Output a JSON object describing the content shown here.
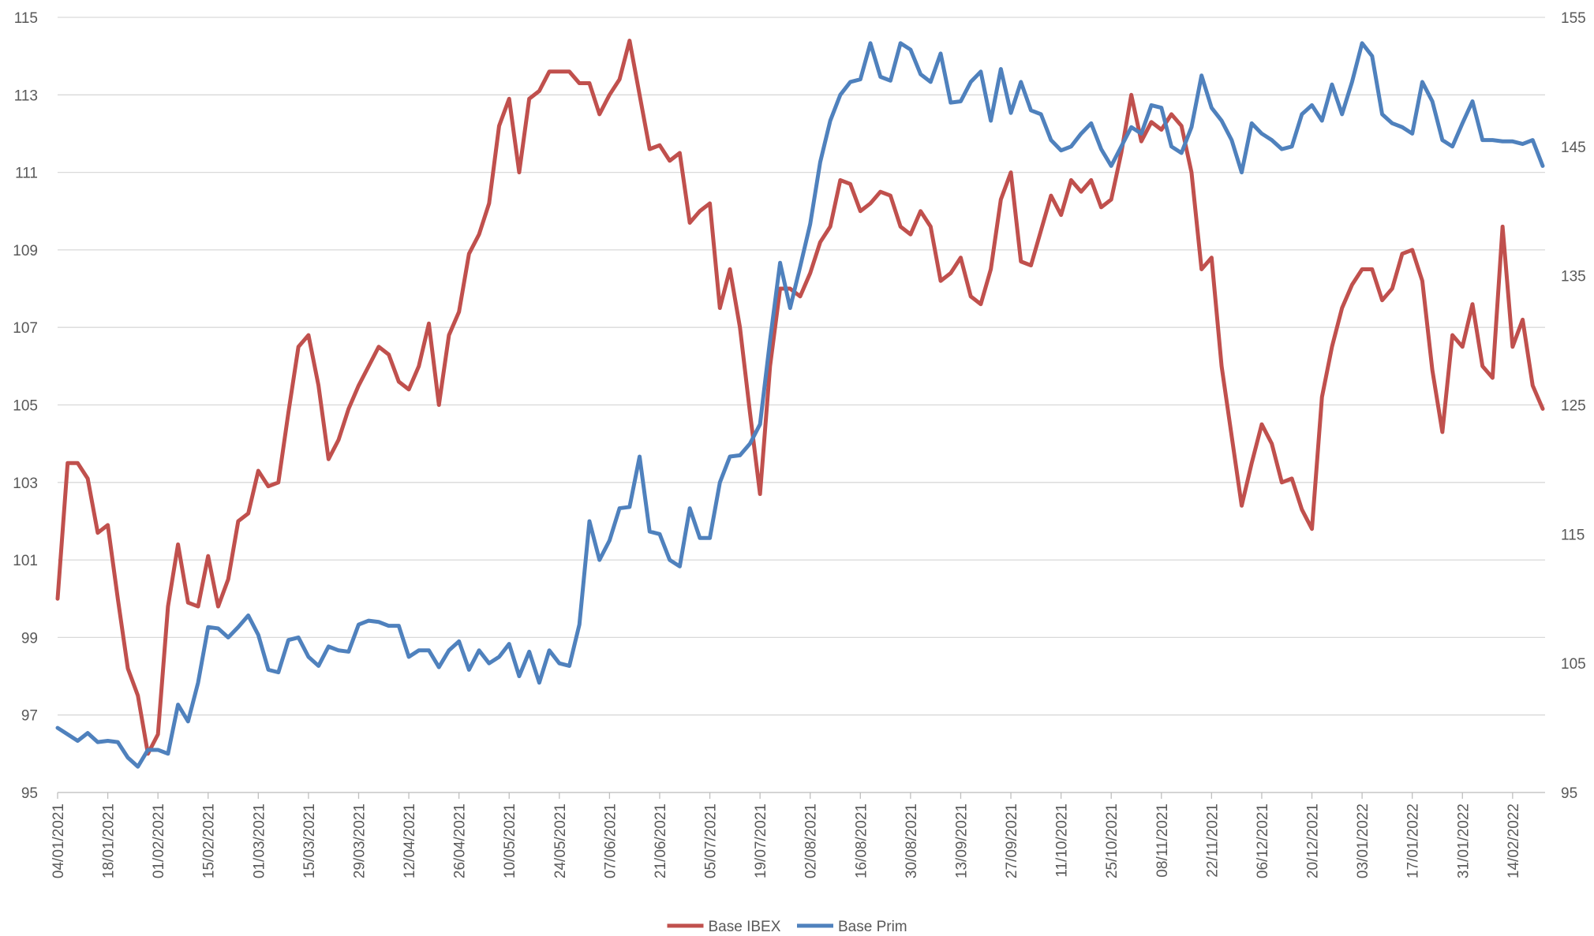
{
  "chart_data": {
    "type": "line",
    "categories": [
      "04/01/2021",
      null,
      null,
      null,
      null,
      "18/01/2021",
      null,
      null,
      null,
      null,
      "01/02/2021",
      null,
      null,
      null,
      null,
      "15/02/2021",
      null,
      null,
      null,
      null,
      "01/03/2021",
      null,
      null,
      null,
      null,
      "15/03/2021",
      null,
      null,
      null,
      null,
      "29/03/2021",
      null,
      null,
      null,
      null,
      "12/04/2021",
      null,
      null,
      null,
      null,
      "26/04/2021",
      null,
      null,
      null,
      null,
      "10/05/2021",
      null,
      null,
      null,
      null,
      "24/05/2021",
      null,
      null,
      null,
      null,
      "07/06/2021",
      null,
      null,
      null,
      null,
      "21/06/2021",
      null,
      null,
      null,
      null,
      "05/07/2021",
      null,
      null,
      null,
      null,
      "19/07/2021",
      null,
      null,
      null,
      null,
      "02/08/2021",
      null,
      null,
      null,
      null,
      "16/08/2021",
      null,
      null,
      null,
      null,
      "30/08/2021",
      null,
      null,
      null,
      null,
      "13/09/2021",
      null,
      null,
      null,
      null,
      "27/09/2021",
      null,
      null,
      null,
      null,
      "11/10/2021",
      null,
      null,
      null,
      null,
      "25/10/2021",
      null,
      null,
      null,
      null,
      "08/11/2021",
      null,
      null,
      null,
      null,
      "22/11/2021",
      null,
      null,
      null,
      null,
      "06/12/2021",
      null,
      null,
      null,
      null,
      "20/12/2021",
      null,
      null,
      null,
      null,
      "03/01/2022",
      null,
      null,
      null,
      null,
      "17/01/2022",
      null,
      null,
      null,
      null,
      "31/01/2022",
      null,
      null,
      null,
      null,
      "14/02/2022",
      null,
      null,
      null
    ],
    "series": [
      {
        "name": "Base IBEX",
        "color": "#c0504d",
        "axis": "y",
        "values": [
          100,
          103.5,
          103.5,
          103.1,
          101.7,
          101.9,
          100.0,
          98.2,
          97.5,
          96.0,
          96.5,
          99.8,
          101.4,
          99.9,
          99.8,
          101.1,
          99.8,
          100.5,
          102.0,
          102.2,
          103.3,
          102.9,
          103.0,
          104.8,
          106.5,
          106.8,
          105.5,
          103.6,
          104.1,
          104.9,
          105.5,
          106.0,
          106.5,
          106.3,
          105.6,
          105.4,
          106.0,
          107.1,
          105.0,
          106.8,
          107.4,
          108.9,
          109.4,
          110.2,
          112.2,
          112.9,
          111.0,
          112.9,
          113.1,
          113.6,
          113.6,
          113.6,
          113.3,
          113.3,
          112.5,
          113.0,
          113.4,
          114.4,
          113.0,
          111.6,
          111.7,
          111.3,
          111.5,
          109.7,
          110.0,
          110.2,
          107.5,
          108.5,
          107.0,
          104.8,
          102.7,
          106.0,
          108.0,
          108.0,
          107.8,
          108.4,
          109.2,
          109.6,
          110.8,
          110.7,
          110.0,
          110.2,
          110.5,
          110.4,
          109.6,
          109.4,
          110.0,
          109.6,
          108.2,
          108.4,
          108.8,
          107.8,
          107.6,
          108.5,
          110.3,
          111.0,
          108.7,
          108.6,
          109.5,
          110.4,
          109.9,
          110.8,
          110.5,
          110.8,
          110.1,
          110.3,
          111.5,
          113.0,
          111.8,
          112.3,
          112.1,
          112.5,
          112.2,
          111.0,
          108.5,
          108.8,
          106.0,
          104.2,
          102.4,
          103.5,
          104.5,
          104.0,
          103.0,
          103.1,
          102.3,
          101.8,
          105.2,
          106.5,
          107.5,
          108.1,
          108.5,
          108.5,
          107.7,
          108.0,
          108.9,
          109.0,
          108.2,
          105.9,
          104.3,
          106.8,
          106.5,
          107.6,
          106.0,
          105.7,
          109.6,
          106.5,
          107.2,
          105.5,
          104.9
        ]
      },
      {
        "name": "Base Prim",
        "color": "#4f81bd",
        "axis": "y2",
        "values": [
          100.0,
          99.5,
          99.0,
          99.6,
          98.9,
          99.0,
          98.9,
          97.7,
          97.0,
          98.3,
          98.3,
          98.0,
          101.8,
          100.5,
          103.5,
          107.8,
          107.7,
          107.0,
          107.8,
          108.7,
          107.2,
          104.5,
          104.3,
          106.8,
          107.0,
          105.5,
          104.8,
          106.3,
          106.0,
          105.9,
          108.0,
          108.3,
          108.2,
          107.9,
          107.9,
          105.5,
          106.0,
          106.0,
          104.7,
          106.0,
          106.7,
          104.5,
          106.0,
          105.0,
          105.5,
          106.5,
          104.0,
          105.9,
          103.5,
          106.0,
          105.0,
          104.8,
          108.0,
          116.0,
          113.0,
          114.5,
          117.0,
          117.1,
          121.0,
          115.2,
          115.0,
          113.0,
          112.5,
          117.0,
          114.7,
          114.7,
          119.0,
          121.0,
          121.1,
          122.0,
          123.5,
          130.0,
          136.0,
          132.5,
          135.7,
          139.0,
          143.8,
          147.0,
          149.0,
          150.0,
          150.2,
          153.0,
          150.4,
          150.1,
          153.0,
          152.5,
          150.6,
          150.0,
          152.2,
          148.4,
          148.5,
          150.0,
          150.8,
          147.0,
          151.0,
          147.6,
          150.0,
          147.8,
          147.5,
          145.5,
          144.7,
          145.0,
          146.0,
          146.8,
          144.8,
          143.5,
          145.0,
          146.5,
          146.0,
          148.2,
          148.0,
          145.0,
          144.5,
          146.5,
          150.5,
          148.0,
          147.0,
          145.5,
          143.0,
          146.8,
          146.0,
          145.5,
          144.8,
          145.0,
          147.5,
          148.2,
          147.0,
          149.8,
          147.5,
          150.0,
          153.0,
          152.0,
          147.5,
          146.8,
          146.5,
          146.0,
          150.0,
          148.5,
          145.5,
          145.0,
          146.8,
          148.5,
          145.5,
          145.5,
          145.4,
          145.4,
          145.2,
          145.5,
          143.5
        ]
      }
    ],
    "ylim": [
      95,
      115
    ],
    "yticks": [
      95,
      97,
      99,
      101,
      103,
      105,
      107,
      109,
      111,
      113,
      115
    ],
    "y2lim": [
      95,
      155
    ],
    "y2ticks": [
      95,
      105,
      115,
      125,
      135,
      145,
      155
    ],
    "grid": true,
    "legend": "bottom"
  }
}
